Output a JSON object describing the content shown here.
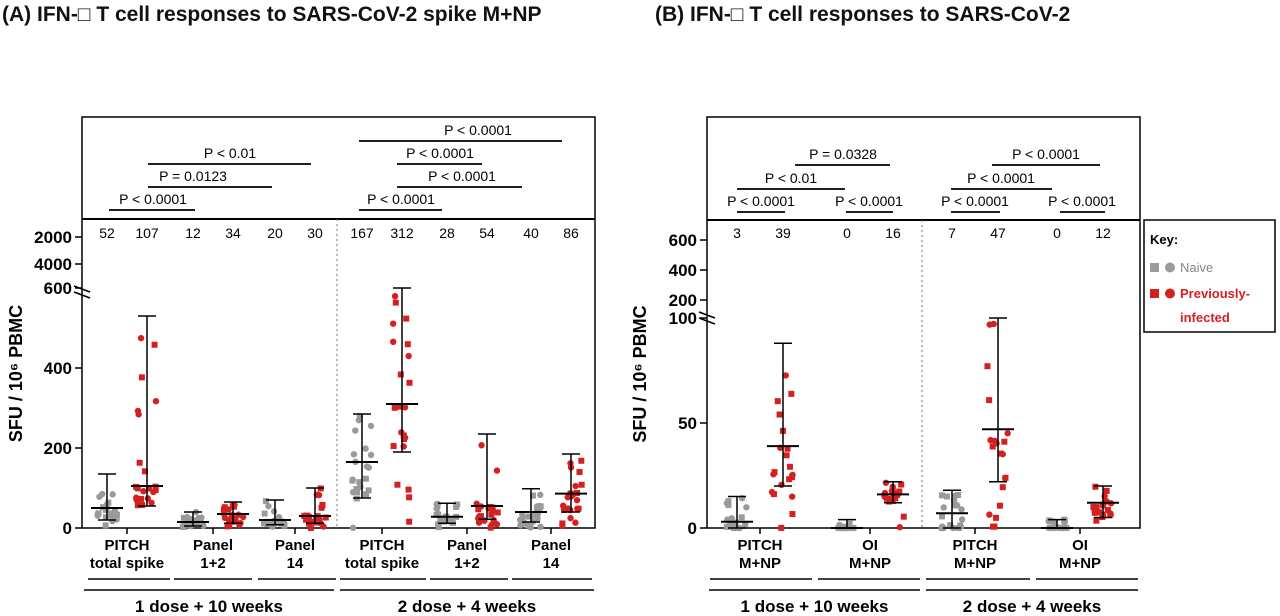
{
  "titles": {
    "a": "(A) IFN-□ T cell responses to SARS-CoV-2 spike M+NP",
    "b": "(B) IFN-□ T cell responses to SARS-CoV-2"
  },
  "key": {
    "title": "Key:",
    "naive": "Naive",
    "infected_line1": "Previously-",
    "infected_line2": "infected"
  },
  "colors": {
    "naive": "#9a9a9a",
    "infected": "#d42020",
    "axis": "#000000"
  },
  "chart_data": [
    {
      "id": "A",
      "type": "scatter",
      "ylabel": "SFU / 10^6 PBMC",
      "lower_ticks": [
        "0",
        "200",
        "400",
        "600"
      ],
      "upper_ticks": [
        "2000",
        "4000"
      ],
      "groups": [
        {
          "label": [
            "PITCH",
            "total spike"
          ],
          "counts": [
            "52",
            "107"
          ],
          "naive": {
            "median": 50,
            "q1": 20,
            "q3": 135
          },
          "infected": {
            "median": 105,
            "q1": 55,
            "q3": 530
          }
        },
        {
          "label": [
            "Panel",
            "1+2"
          ],
          "counts": [
            "12",
            "34"
          ],
          "naive": {
            "median": 15,
            "q1": 5,
            "q3": 40
          },
          "infected": {
            "median": 35,
            "q1": 12,
            "q3": 65
          }
        },
        {
          "label": [
            "Panel",
            "14"
          ],
          "counts": [
            "20",
            "30"
          ],
          "naive": {
            "median": 20,
            "q1": 8,
            "q3": 70
          },
          "infected": {
            "median": 30,
            "q1": 12,
            "q3": 100
          }
        },
        {
          "label": [
            "PITCH",
            "total spike"
          ],
          "counts": [
            "167",
            "312"
          ],
          "naive": {
            "median": 165,
            "q1": 75,
            "q3": 285
          },
          "infected": {
            "median": 310,
            "q1": 190,
            "q3": 600
          }
        },
        {
          "label": [
            "Panel",
            "1+2"
          ],
          "counts": [
            "28",
            "54"
          ],
          "naive": {
            "median": 28,
            "q1": 12,
            "q3": 62
          },
          "infected": {
            "median": 55,
            "q1": 22,
            "q3": 235
          }
        },
        {
          "label": [
            "Panel",
            "14"
          ],
          "counts": [
            "40",
            "86"
          ],
          "naive": {
            "median": 40,
            "q1": 15,
            "q3": 98
          },
          "infected": {
            "median": 86,
            "q1": 40,
            "q3": 185
          }
        }
      ],
      "timepoints": [
        "1 dose + 10 weeks",
        "2 dose + 4 weeks"
      ],
      "pvalues": [
        "P < 0.0001",
        "P = 0.0123",
        "P < 0.01",
        "P < 0.0001",
        "P < 0.0001",
        "P < 0.0001",
        "P < 0.0001"
      ]
    },
    {
      "id": "B",
      "type": "scatter",
      "ylabel": "SFU / 10^6 PBMC",
      "lower_ticks": [
        "0",
        "50",
        "100"
      ],
      "upper_ticks": [
        "200",
        "400",
        "600"
      ],
      "groups": [
        {
          "label": [
            "PITCH",
            "M+NP"
          ],
          "counts": [
            "3",
            "39"
          ],
          "naive": {
            "median": 3,
            "q1": 0,
            "q3": 15
          },
          "infected": {
            "median": 39,
            "q1": 20,
            "q3": 88
          }
        },
        {
          "label": [
            "OI",
            "M+NP"
          ],
          "counts": [
            "0",
            "16"
          ],
          "naive": {
            "median": 0,
            "q1": 0,
            "q3": 4
          },
          "infected": {
            "median": 16,
            "q1": 12,
            "q3": 22
          }
        },
        {
          "label": [
            "PITCH",
            "M+NP"
          ],
          "counts": [
            "7",
            "47"
          ],
          "naive": {
            "median": 7,
            "q1": 0,
            "q3": 18
          },
          "infected": {
            "median": 47,
            "q1": 22,
            "q3": 100
          }
        },
        {
          "label": [
            "OI",
            "M+NP"
          ],
          "counts": [
            "0",
            "12"
          ],
          "naive": {
            "median": 0,
            "q1": 0,
            "q3": 4
          },
          "infected": {
            "median": 12,
            "q1": 5,
            "q3": 20
          }
        }
      ],
      "timepoints": [
        "1 dose + 10 weeks",
        "2 dose + 4 weeks"
      ],
      "pvalues": [
        "P < 0.0001",
        "P < 0.0001",
        "P < 0.01",
        "P = 0.0328",
        "P < 0.0001",
        "P < 0.0001",
        "P < 0.0001",
        "P < 0.0001"
      ]
    }
  ]
}
